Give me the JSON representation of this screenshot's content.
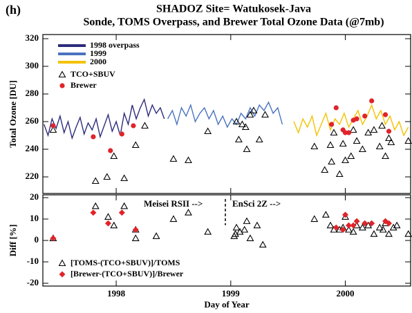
{
  "chart_data": [
    {
      "type": "line",
      "panel_label": "(h)",
      "title": "SHADOZ Site= Watukosek-Java",
      "subtitle": "Sonde, TOMS Overpass, and Brewer Total Ozone Data (@7mb)",
      "ylabel": "Total Ozone [DU]",
      "xlim": [
        1997.36,
        2000.57
      ],
      "xticks": [
        1998,
        1999,
        2000
      ],
      "ylim": [
        208,
        323
      ],
      "yticks": [
        220,
        240,
        260,
        280,
        300,
        320
      ],
      "series": [
        {
          "name": "1998 overpass",
          "marker": "line",
          "color": "#2b2b7a",
          "x": [
            1997.37,
            1997.405,
            1997.44,
            1997.475,
            1997.51,
            1997.545,
            1997.58,
            1997.615,
            1997.65,
            1997.685,
            1997.72,
            1997.755,
            1997.79,
            1997.825,
            1997.86,
            1997.895,
            1997.93,
            1997.965,
            1998.0,
            1998.035,
            1998.07,
            1998.105,
            1998.14,
            1998.175,
            1998.21,
            1998.245,
            1998.28,
            1998.315,
            1998.35,
            1998.385,
            1998.42
          ],
          "values": [
            258,
            250,
            262,
            255,
            264,
            252,
            260,
            248,
            256,
            263,
            251,
            259,
            254,
            262,
            249,
            257,
            265,
            253,
            260,
            250,
            266,
            258,
            272,
            262,
            270,
            276,
            264,
            272,
            266,
            270,
            262
          ]
        },
        {
          "name": "1999",
          "marker": "line",
          "color": "#4a73c0",
          "x": [
            1998.45,
            1998.49,
            1998.53,
            1998.57,
            1998.61,
            1998.65,
            1998.69,
            1998.73,
            1998.77,
            1998.81,
            1998.85,
            1998.89,
            1998.93,
            1998.97,
            1999.01,
            1999.05,
            1999.09,
            1999.13,
            1999.17,
            1999.21,
            1999.25,
            1999.29,
            1999.33,
            1999.37,
            1999.41,
            1999.45
          ],
          "values": [
            262,
            268,
            258,
            270,
            264,
            272,
            260,
            266,
            270,
            262,
            268,
            258,
            264,
            256,
            262,
            258,
            266,
            262,
            270,
            264,
            272,
            268,
            274,
            266,
            270,
            258
          ]
        },
        {
          "name": "2000",
          "marker": "line",
          "color": "#f2c200",
          "x": [
            1999.55,
            1999.59,
            1999.63,
            1999.67,
            1999.71,
            1999.75,
            1999.79,
            1999.83,
            1999.87,
            1999.91,
            1999.95,
            1999.99,
            2000.03,
            2000.07,
            2000.11,
            2000.15,
            2000.19,
            2000.23,
            2000.27,
            2000.31,
            2000.35,
            2000.39,
            2000.43,
            2000.47,
            2000.51,
            2000.55
          ],
          "values": [
            260,
            252,
            262,
            256,
            264,
            250,
            258,
            266,
            254,
            262,
            258,
            266,
            256,
            262,
            268,
            258,
            264,
            272,
            262,
            268,
            258,
            264,
            254,
            260,
            250,
            256
          ]
        },
        {
          "name": "TCO+SBUV",
          "marker": "triangle",
          "color": "#000000",
          "x": [
            1997.45,
            1997.82,
            1997.92,
            1997.98,
            1998.07,
            1998.17,
            1998.25,
            1998.5,
            1998.63,
            1998.8,
            1999.05,
            1999.07,
            1999.1,
            1999.13,
            1999.14,
            1999.17,
            1999.2,
            1999.25,
            1999.3,
            1999.73,
            1999.82,
            1999.87,
            1999.88,
            1999.9,
            1999.95,
            1999.98,
            2000.0,
            2000.05,
            2000.07,
            2000.1,
            2000.15,
            2000.2,
            2000.25,
            2000.3,
            2000.32,
            2000.35,
            2000.38,
            2000.4,
            2000.55
          ],
          "values": [
            254,
            217,
            220,
            235,
            219,
            243,
            257,
            233,
            232,
            253,
            260,
            247,
            258,
            256,
            240,
            265,
            268,
            247,
            265,
            242,
            225,
            243,
            231,
            252,
            222,
            244,
            232,
            235,
            254,
            246,
            240,
            252,
            254,
            242,
            257,
            235,
            248,
            245,
            246
          ]
        },
        {
          "name": "Brewer",
          "marker": "circle",
          "color": "#e0242a",
          "x": [
            1997.45,
            1997.8,
            1997.95,
            1998.05,
            1998.15,
            1999.88,
            1999.92,
            1999.98,
            2000.0,
            2000.03,
            2000.07,
            2000.1,
            2000.17,
            2000.23,
            2000.35,
            2000.38
          ],
          "values": [
            257,
            249,
            239,
            251,
            257,
            258,
            270,
            254,
            252,
            252,
            261,
            262,
            264,
            275,
            265,
            253
          ]
        }
      ]
    },
    {
      "type": "scatter",
      "ylabel": "Diff [%]",
      "xlabel": "Day of Year",
      "xlim": [
        1997.36,
        2000.57
      ],
      "xticks": [
        1998,
        1999,
        2000
      ],
      "ylim": [
        -21.3,
        21.3
      ],
      "yticks": [
        -20,
        -10,
        0,
        10,
        20
      ],
      "annotations": [
        "Meisei RSII -->",
        "EnSci 2Z -->"
      ],
      "series": [
        {
          "name": "[TOMS-(TCO+SBUV)]/TOMS",
          "marker": "triangle",
          "color": "#000000",
          "x": [
            1997.45,
            1997.82,
            1997.93,
            1997.98,
            1998.07,
            1998.17,
            1998.17,
            1998.35,
            1998.5,
            1998.63,
            1998.8,
            1999.03,
            1999.04,
            1999.05,
            1999.08,
            1999.12,
            1999.14,
            1999.17,
            1999.23,
            1999.28,
            1999.73,
            1999.83,
            1999.87,
            1999.9,
            1999.95,
            1999.98,
            2000.0,
            2000.03,
            2000.07,
            2000.1,
            2000.15,
            2000.2,
            2000.25,
            2000.3,
            2000.33,
            2000.35,
            2000.38,
            2000.42,
            2000.45,
            2000.55
          ],
          "values": [
            1,
            16,
            11,
            7,
            16,
            1,
            5,
            2,
            10,
            13,
            4,
            2,
            3,
            6,
            4,
            5,
            9,
            1,
            7,
            -2,
            10,
            12,
            7,
            5,
            5,
            6,
            11,
            5,
            4,
            7,
            6,
            7,
            3,
            6,
            5,
            8,
            3,
            6,
            7,
            3
          ]
        },
        {
          "name": "[Brewer-(TCO+SBUV)]/Brewer",
          "marker": "diamond",
          "color": "#e0242a",
          "x": [
            1997.45,
            1997.8,
            1997.93,
            1998.05,
            1998.17,
            1999.92,
            1999.98,
            2000.0,
            2000.03,
            2000.07,
            2000.1,
            2000.17,
            2000.23,
            2000.35,
            2000.38
          ],
          "values": [
            1,
            13,
            8,
            13,
            5,
            6,
            5,
            12,
            7,
            7,
            9,
            8,
            8,
            9,
            8
          ]
        }
      ]
    }
  ]
}
